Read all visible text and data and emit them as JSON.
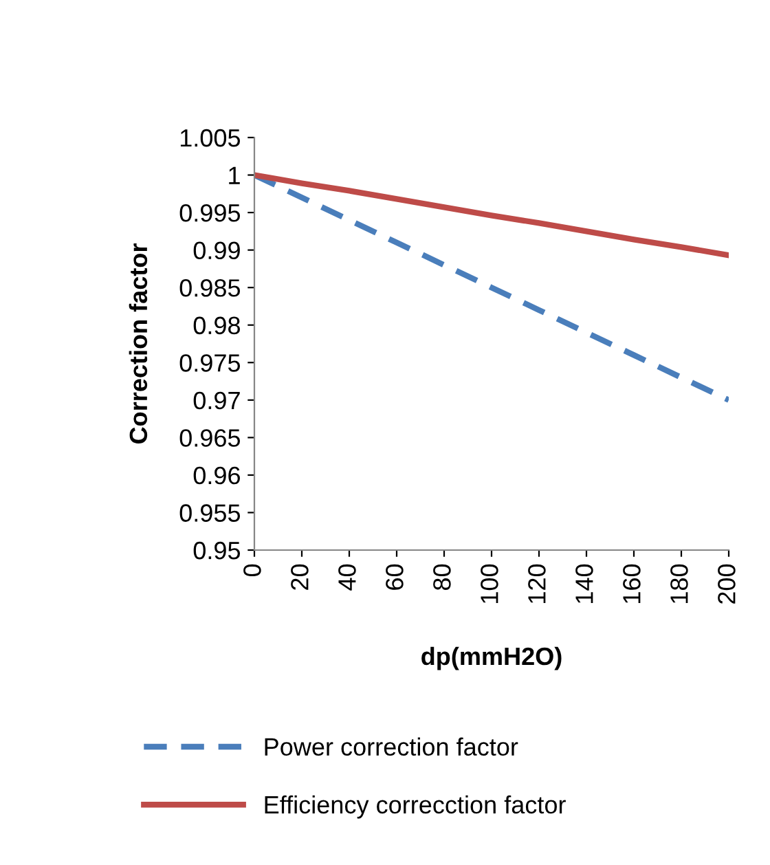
{
  "chart_data": {
    "type": "line",
    "xlabel": "dp(mmH2O)",
    "ylabel": "Correction factor",
    "x": [
      0,
      20,
      40,
      60,
      80,
      100,
      120,
      140,
      160,
      180,
      200
    ],
    "series": [
      {
        "name": "Power correction factor",
        "color": "#4a7ebb",
        "line_style": "dashed",
        "values": [
          1,
          0.997,
          0.994,
          0.991,
          0.988,
          0.985,
          0.982,
          0.979,
          0.976,
          0.973,
          0.97
        ]
      },
      {
        "name": "Efficiency correcction factor",
        "color": "#be4b48",
        "line_style": "solid",
        "values": [
          1,
          0.9989,
          0.9979,
          0.9968,
          0.9957,
          0.9946,
          0.9936,
          0.9925,
          0.9914,
          0.9904,
          0.9893
        ]
      }
    ],
    "xlim": [
      0,
      200
    ],
    "xticks": [
      0,
      20,
      40,
      60,
      80,
      100,
      120,
      140,
      160,
      180,
      200
    ],
    "ylim": [
      0.95,
      1.005
    ],
    "yticks": [
      {
        "value": 0.95,
        "label": "0.95"
      },
      {
        "value": 0.955,
        "label": "0.955"
      },
      {
        "value": 0.96,
        "label": "0.96"
      },
      {
        "value": 0.965,
        "label": "0.965"
      },
      {
        "value": 0.97,
        "label": "0.97"
      },
      {
        "value": 0.975,
        "label": "0.975"
      },
      {
        "value": 0.98,
        "label": "0.98"
      },
      {
        "value": 0.985,
        "label": "0.985"
      },
      {
        "value": 0.99,
        "label": "0.99"
      },
      {
        "value": 0.995,
        "label": "0.995"
      },
      {
        "value": 1,
        "label": "1"
      },
      {
        "value": 1.005,
        "label": "1.005"
      }
    ],
    "grid": false,
    "legend": "bottom",
    "marker": "none"
  }
}
